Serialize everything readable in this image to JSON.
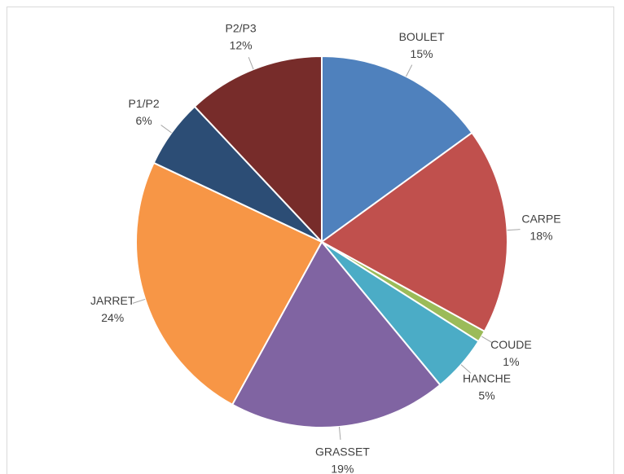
{
  "chart_data": {
    "type": "pie",
    "categories": [
      "BOULET",
      "CARPE",
      "COUDE",
      "HANCHE",
      "GRASSET",
      "JARRET",
      "P1/P2",
      "P2/P3"
    ],
    "values": [
      15,
      18,
      1,
      5,
      19,
      24,
      6,
      12
    ],
    "value_labels": [
      "15%",
      "18%",
      "1%",
      "5%",
      "19%",
      "24%",
      "6%",
      "12%"
    ],
    "colors": [
      "#4f81bd",
      "#c0504d",
      "#9bbb59",
      "#4bacc6",
      "#8064a2",
      "#f79646",
      "#2c4d75",
      "#772c2a"
    ]
  }
}
